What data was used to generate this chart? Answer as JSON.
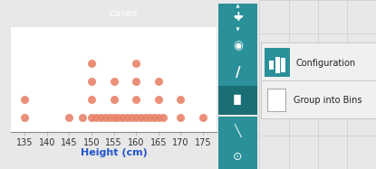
{
  "title": "cases",
  "xlabel": "Height (cm)",
  "xlabel_color": "#2255cc",
  "title_color": "#ffffff",
  "title_bg": "#2a9099",
  "dot_color": "#e8836a",
  "dot_alpha": 0.9,
  "xlim": [
    132,
    178
  ],
  "xticks": [
    135,
    140,
    145,
    150,
    155,
    160,
    165,
    170,
    175
  ],
  "heights": [
    135,
    135,
    145,
    148,
    150,
    150,
    150,
    150,
    151,
    152,
    153,
    154,
    155,
    155,
    155,
    156,
    157,
    158,
    159,
    160,
    160,
    160,
    160,
    161,
    162,
    163,
    164,
    165,
    165,
    165,
    166,
    170,
    170,
    175
  ],
  "toolbar_bg": "#2a9099",
  "toolbar_bg_dark": "#1e7880",
  "panel_bg": "#e8e8e8",
  "plot_bg": "#ffffff",
  "config_text": "Configuration",
  "config_sub": "Group into Bins",
  "dot_size": 6.5,
  "tick_fontsize": 7,
  "xlabel_fontsize": 8,
  "title_fontsize": 8
}
